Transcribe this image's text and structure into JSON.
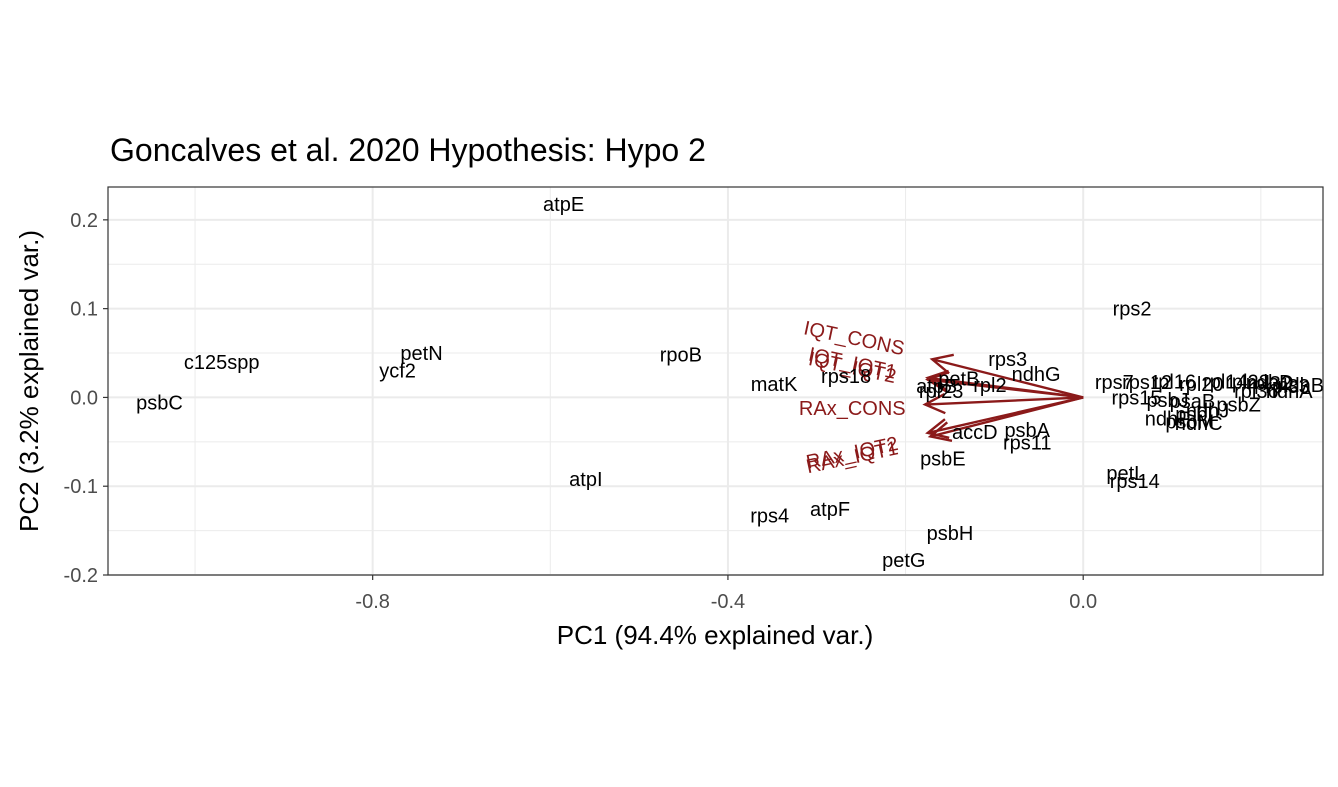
{
  "chart_data": {
    "type": "scatter",
    "title": "Goncalves et al. 2020 Hypothesis:  Hypo 2",
    "xlabel": "PC1 (94.4% explained var.)",
    "ylabel": "PC2 (3.2% explained var.)",
    "xlim": [
      -1.098,
      0.27
    ],
    "ylim": [
      -0.2,
      0.237
    ],
    "x_ticks": [
      -0.8,
      -0.4,
      0.0
    ],
    "x_tick_labels": [
      "-0.8",
      "-0.4",
      "0.0"
    ],
    "y_ticks": [
      -0.2,
      -0.1,
      0.0,
      0.1,
      0.2
    ],
    "y_tick_labels": [
      "-0.2",
      "-0.1",
      "0.0",
      "0.1",
      "0.2"
    ],
    "grid": true,
    "arrow_color": "#8b1a1a",
    "points": [
      {
        "label": "atpE",
        "x": -0.585,
        "y": 0.217
      },
      {
        "label": "rps2",
        "x": 0.055,
        "y": 0.099
      },
      {
        "label": "c125spp",
        "x": -0.97,
        "y": 0.039
      },
      {
        "label": "petN",
        "x": -0.745,
        "y": 0.049
      },
      {
        "label": "ycf2",
        "x": -0.772,
        "y": 0.029
      },
      {
        "label": "psbC",
        "x": -1.04,
        "y": -0.007
      },
      {
        "label": "rpoB",
        "x": -0.453,
        "y": 0.047
      },
      {
        "label": "matK",
        "x": -0.348,
        "y": 0.014
      },
      {
        "label": "rps18",
        "x": -0.267,
        "y": 0.023
      },
      {
        "label": "rps3",
        "x": -0.085,
        "y": 0.042
      },
      {
        "label": "ndhG",
        "x": -0.053,
        "y": 0.025
      },
      {
        "label": "petB",
        "x": -0.14,
        "y": 0.02
      },
      {
        "label": "atpB",
        "x": -0.165,
        "y": 0.012
      },
      {
        "label": "rpl2",
        "x": -0.105,
        "y": 0.013
      },
      {
        "label": "rpl23",
        "x": -0.16,
        "y": 0.006
      },
      {
        "label": "accD",
        "x": -0.122,
        "y": -0.04
      },
      {
        "label": "psbA",
        "x": -0.063,
        "y": -0.038
      },
      {
        "label": "rps11",
        "x": -0.063,
        "y": -0.052
      },
      {
        "label": "psbE",
        "x": -0.158,
        "y": -0.07
      },
      {
        "label": "atpI",
        "x": -0.56,
        "y": -0.093
      },
      {
        "label": "rps4",
        "x": -0.353,
        "y": -0.134
      },
      {
        "label": "atpF",
        "x": -0.285,
        "y": -0.127
      },
      {
        "label": "psbH",
        "x": -0.15,
        "y": -0.154
      },
      {
        "label": "petG",
        "x": -0.202,
        "y": -0.184
      },
      {
        "label": "petL",
        "x": 0.048,
        "y": -0.086
      },
      {
        "label": "rps14",
        "x": 0.058,
        "y": -0.095
      },
      {
        "label": "rps7",
        "x": 0.035,
        "y": 0.016
      },
      {
        "label": "rps12",
        "x": 0.072,
        "y": 0.016
      },
      {
        "label": "rpl16",
        "x": 0.102,
        "y": 0.017
      },
      {
        "label": "rpl20",
        "x": 0.133,
        "y": 0.014
      },
      {
        "label": "rpl14",
        "x": 0.16,
        "y": 0.017
      },
      {
        "label": "rpl22",
        "x": 0.185,
        "y": 0.017
      },
      {
        "label": "rpl32",
        "x": 0.21,
        "y": 0.015
      },
      {
        "label": "rpl33",
        "x": 0.23,
        "y": 0.012
      },
      {
        "label": "rpl36",
        "x": 0.195,
        "y": 0.006
      },
      {
        "label": "ndhD",
        "x": 0.21,
        "y": 0.016
      },
      {
        "label": "ndhA",
        "x": 0.232,
        "y": 0.006
      },
      {
        "label": "ndhB",
        "x": 0.245,
        "y": 0.013
      },
      {
        "label": "rps15",
        "x": 0.06,
        "y": -0.001
      },
      {
        "label": "psbJ",
        "x": 0.095,
        "y": -0.004
      },
      {
        "label": "psaB",
        "x": 0.123,
        "y": -0.005
      },
      {
        "label": "psbZ",
        "x": 0.175,
        "y": -0.009
      },
      {
        "label": "ndhJ",
        "x": 0.14,
        "y": -0.016
      },
      {
        "label": "psbL",
        "x": 0.128,
        "y": -0.02
      },
      {
        "label": "ndhF",
        "x": 0.095,
        "y": -0.025
      },
      {
        "label": "psbM",
        "x": 0.12,
        "y": -0.028
      },
      {
        "label": "ndhC",
        "x": 0.13,
        "y": -0.03
      }
    ],
    "arrows": [
      {
        "label": "IQT_CONS",
        "x": -0.17,
        "y": 0.043,
        "label_x": -0.258,
        "label_y": 0.066,
        "label_angle": 12
      },
      {
        "label": "IQT_IQT1",
        "x": -0.175,
        "y": 0.022,
        "label_x": -0.26,
        "label_y": 0.038,
        "label_angle": 12
      },
      {
        "label": "IQT_IQT2",
        "x": -0.175,
        "y": 0.02,
        "label_x": -0.26,
        "label_y": 0.033,
        "label_angle": 12
      },
      {
        "label": "RAx_CONS",
        "x": -0.178,
        "y": -0.008,
        "label_x": -0.26,
        "label_y": -0.013,
        "label_angle": 0
      },
      {
        "label": "RAx_IQT2",
        "x": -0.175,
        "y": -0.04,
        "label_x": -0.26,
        "label_y": -0.063,
        "label_angle": -12
      },
      {
        "label": "RAx_IQT1",
        "x": -0.172,
        "y": -0.044,
        "label_x": -0.26,
        "label_y": -0.068,
        "label_angle": -12
      }
    ]
  }
}
